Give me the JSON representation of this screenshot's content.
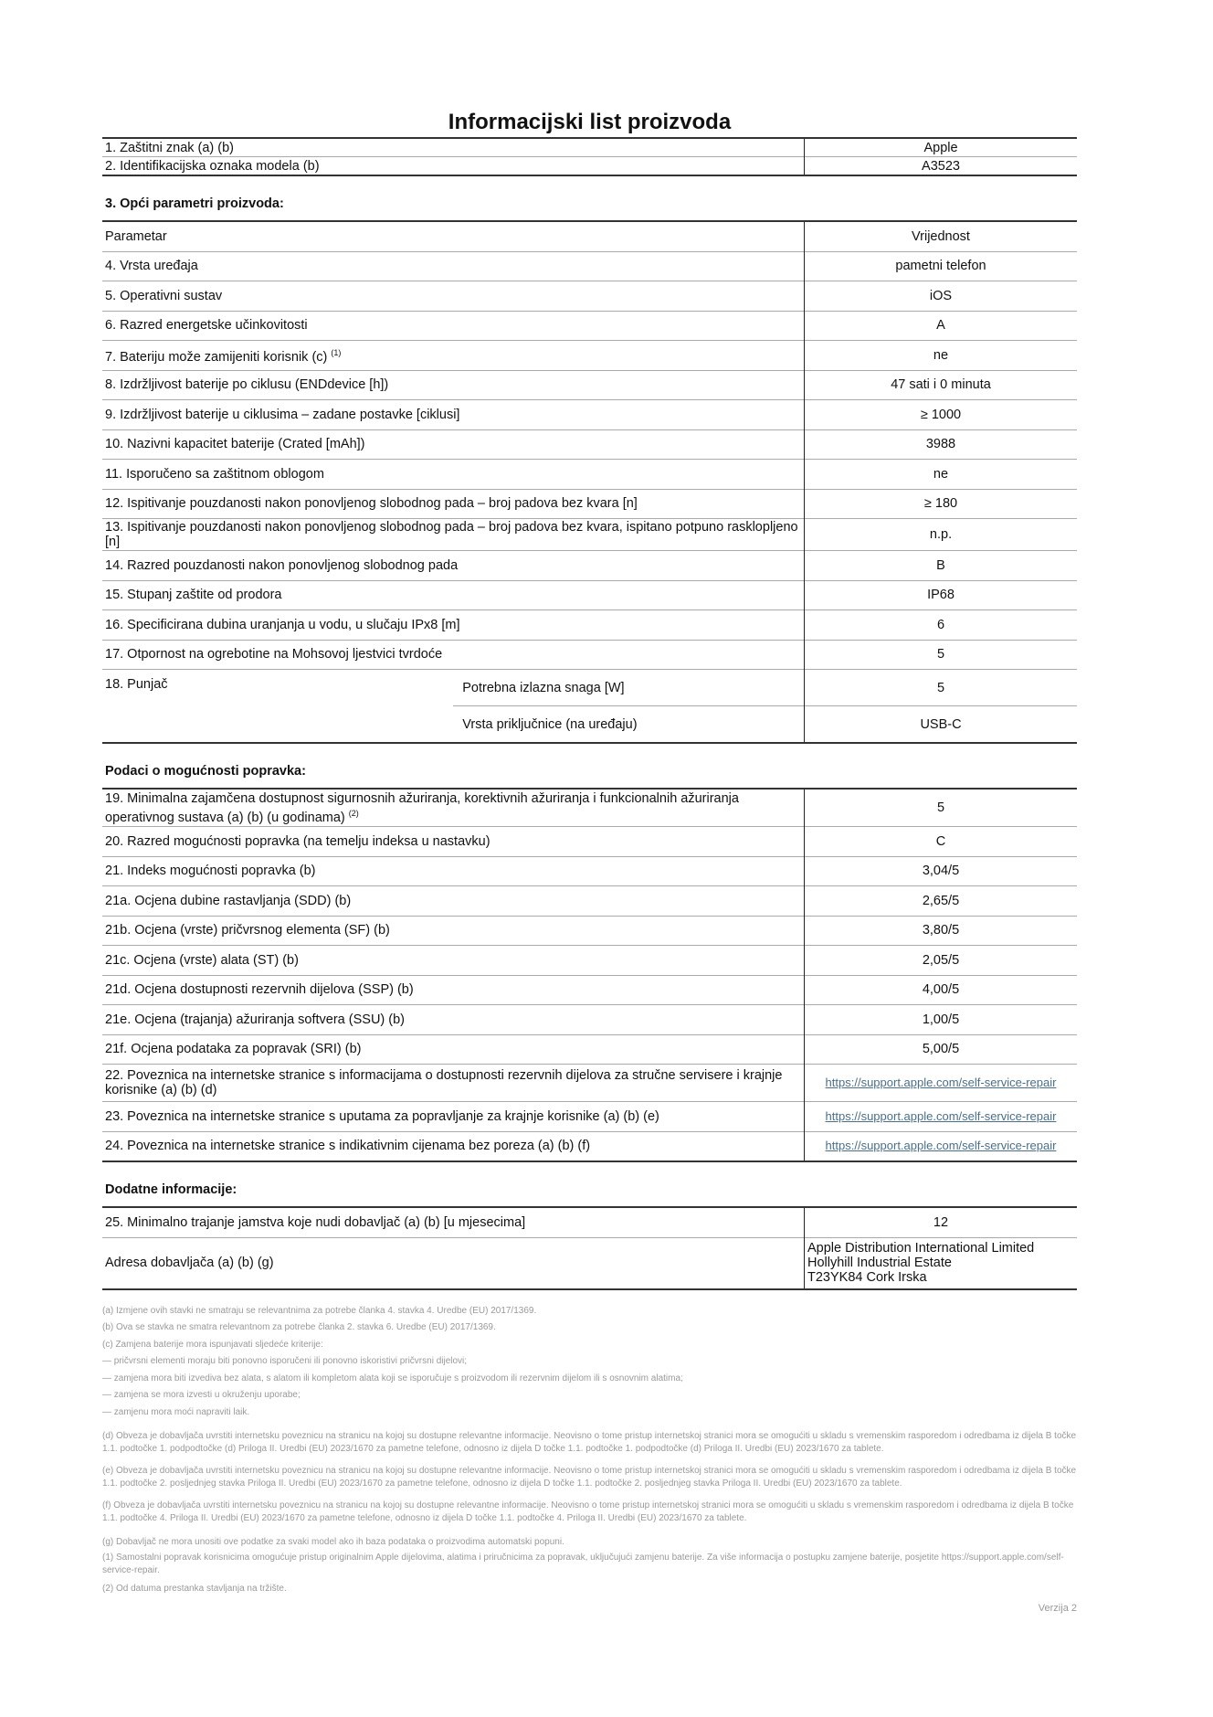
{
  "title": "Informacijski list proizvoda",
  "top_rows": [
    {
      "label": "1. Zaštitni znak (a) (b)",
      "value": "Apple"
    },
    {
      "label": "2. Identifikacijska oznaka modela (b)",
      "value": "A3523"
    }
  ],
  "general": {
    "heading": "3. Opći parametri proizvoda:",
    "header": {
      "label": "Parametar",
      "value": "Vrijednost"
    },
    "rows": [
      {
        "label": "4. Vrsta uređaja",
        "value": "pametni telefon"
      },
      {
        "label": "5. Operativni sustav",
        "value": "iOS"
      },
      {
        "label": "6. Razred energetske učinkovitosti",
        "value": "A"
      },
      {
        "label": "7. Bateriju može zamijeniti korisnik (c)",
        "sup": "(1)",
        "value": "ne"
      },
      {
        "label": "8. Izdržljivost baterije po ciklusu (ENDdevice [h])",
        "value": "47 sati i 0 minuta"
      },
      {
        "label": "9. Izdržljivost baterije u ciklusima – zadane postavke [ciklusi]",
        "value": "≥ 1000"
      },
      {
        "label": "10. Nazivni kapacitet baterije (Crated [mAh])",
        "value": "3988"
      },
      {
        "label": "11. Isporučeno sa zaštitnom oblogom",
        "value": "ne"
      },
      {
        "label": "12. Ispitivanje pouzdanosti nakon ponovljenog slobodnog pada – broj padova bez kvara [n]",
        "value": "≥ 180"
      },
      {
        "label": "13. Ispitivanje pouzdanosti nakon ponovljenog slobodnog pada – broj padova bez kvara, ispitano potpuno rasklopljeno [n]",
        "value": "n.p.",
        "tall": true
      },
      {
        "label": "14. Razred pouzdanosti nakon ponovljenog slobodnog pada",
        "value": "B"
      },
      {
        "label": "15. Stupanj zaštite od prodora",
        "value": "IP68"
      },
      {
        "label": "16. Specificirana dubina uranjanja u vodu, u slučaju IPx8 [m]",
        "value": "6"
      },
      {
        "label": "17. Otpornost na ogrebotine na Mohsovoj ljestvici tvrdoće",
        "value": "5"
      }
    ],
    "charger": {
      "label": "18. Punjač",
      "sub": [
        {
          "label": "Potrebna izlazna snaga [W]",
          "value": "5"
        },
        {
          "label": "Vrsta priključnice (na uređaju)",
          "value": "USB-C"
        }
      ]
    }
  },
  "repair": {
    "heading": "Podaci o mogućnosti popravka:",
    "rows": [
      {
        "label": "19. Minimalna zajamčena dostupnost sigurnosnih ažuriranja, korektivnih ažuriranja i funkcionalnih ažuriranja operativnog sustava (a) (b) (u godinama)",
        "sup": "(2)",
        "value": "5",
        "tall": true
      },
      {
        "label": "20. Razred mogućnosti popravka (na temelju indeksa u nastavku)",
        "value": "C"
      },
      {
        "label": "21. Indeks mogućnosti popravka (b)",
        "value": "3,04/5"
      },
      {
        "label": "21a. Ocjena dubine rastavljanja (SDD) (b)",
        "value": "2,65/5"
      },
      {
        "label": "21b. Ocjena (vrste) pričvrsnog elementa (SF) (b)",
        "value": "3,80/5"
      },
      {
        "label": "21c. Ocjena (vrste) alata (ST) (b)",
        "value": "2,05/5"
      },
      {
        "label": "21d. Ocjena dostupnosti rezervnih dijelova (SSP) (b)",
        "value": "4,00/5"
      },
      {
        "label": "21e. Ocjena (trajanja) ažuriranja softvera (SSU) (b)",
        "value": "1,00/5"
      },
      {
        "label": "21f. Ocjena podataka za popravak (SRI) (b)",
        "value": "5,00/5"
      },
      {
        "label": "22. Poveznica na internetske stranice s informacijama o dostupnosti rezervnih dijelova za stručne servisere i krajnje korisnike (a) (b) (d)",
        "link": "https://support.apple.com/self-service-repair",
        "tall": true
      },
      {
        "label": "23. Poveznica na internetske stranice s uputama za popravljanje za krajnje korisnike (a) (b) (e)",
        "link": "https://support.apple.com/self-service-repair"
      },
      {
        "label": "24. Poveznica na internetske stranice s indikativnim cijenama bez poreza (a) (b) (f)",
        "link": "https://support.apple.com/self-service-repair"
      }
    ]
  },
  "additional": {
    "heading": "Dodatne informacije:",
    "warranty": {
      "label": "25. Minimalno trajanje jamstva koje nudi dobavljač (a) (b) [u mjesecima]",
      "value": "12"
    },
    "address": {
      "label": "Adresa dobavljača (a) (b) (g)",
      "lines": [
        "Apple Distribution International Limited",
        "Hollyhill Industrial Estate",
        "T23YK84 Cork Irska"
      ]
    }
  },
  "notes": {
    "short": [
      "(a) Izmjene ovih stavki ne smatraju se relevantnima za potrebe članka 4. stavka 4. Uredbe (EU) 2017/1369.",
      "(b) Ova se stavka ne smatra relevantnom za potrebe članka 2. stavka 6. Uredbe (EU) 2017/1369.",
      "(c) Zamjena baterije mora ispunjavati sljedeće kriterije:",
      "— pričvrsni elementi moraju biti ponovno isporučeni ili ponovno iskoristivi pričvrsni dijelovi;",
      "— zamjena mora biti izvediva bez alata, s alatom ili kompletom alata koji se isporučuje s proizvodom ili rezervnim dijelom ili s osnovnim alatima;",
      "— zamjena se mora izvesti u okruženju uporabe;",
      "— zamjenu mora moći napraviti laik."
    ],
    "long": [
      "(d) Obveza je dobavljača uvrstiti internetsku poveznicu na stranicu na kojoj su dostupne relevantne informacije. Neovisno o tome pristup internetskoj stranici mora se omogućiti u skladu s vremenskim rasporedom i odredbama iz dijela B točke 1.1. podtočke 1. podpodtočke (d) Priloga II. Uredbi (EU) 2023/1670 za pametne telefone, odnosno iz dijela D točke 1.1. podtočke 1. podpodtočke (d) Priloga II. Uredbi (EU) 2023/1670 za tablete.",
      "(e) Obveza je dobavljača uvrstiti internetsku poveznicu na stranicu na kojoj su dostupne relevantne informacije. Neovisno o tome pristup internetskoj stranici mora se omogućiti u skladu s vremenskim rasporedom i odredbama iz dijela B točke 1.1. podtočke 2. posljednjeg stavka Priloga II. Uredbi (EU) 2023/1670 za pametne telefone, odnosno iz dijela D točke 1.1. podtočke 2. posljednjeg stavka Priloga II. Uredbi (EU) 2023/1670 za tablete.",
      "(f) Obveza je dobavljača uvrstiti internetsku poveznicu na stranicu na kojoj su dostupne relevantne informacije. Neovisno o tome pristup internetskoj stranici mora se omogućiti u skladu s vremenskim rasporedom i odredbama iz dijela B točke 1.1. podtočke 4. Priloga II. Uredbi (EU) 2023/1670 za pametne telefone, odnosno iz dijela D točke 1.1. podtočke 4. Priloga II. Uredbi (EU) 2023/1670 za tablete."
    ],
    "tail": [
      "(g) Dobavljač ne mora unositi ove podatke za svaki model ako ih baza podataka o proizvodima automatski popuni.",
      "(1) Samostalni popravak korisnicima omogućuje pristup originalnim Apple dijelovima, alatima i priručnicima za popravak, uključujući zamjenu baterije. Za više informacija o postupku zamjene baterije, posjetite https://support.apple.com/self-service-repair.",
      "(2) Od datuma prestanka stavljanja na tržište."
    ],
    "version": "Verzija 2"
  }
}
